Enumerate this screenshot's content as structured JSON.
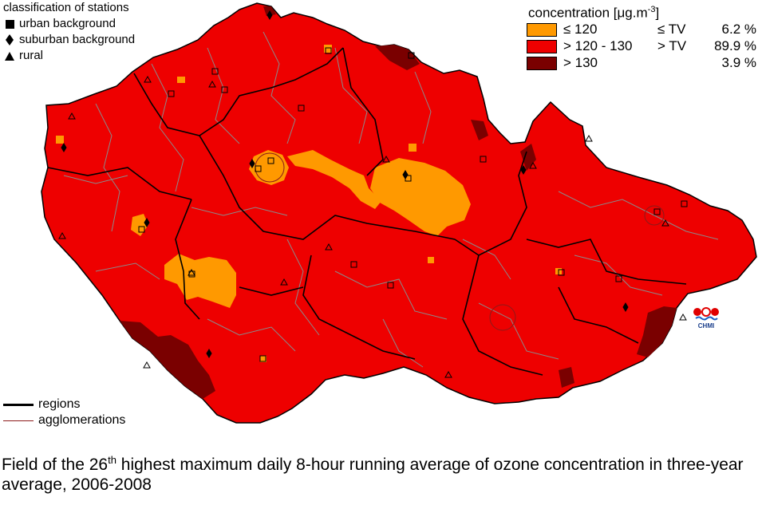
{
  "stations_legend": {
    "title": "classification of stations",
    "items": [
      {
        "symbol": "square",
        "label": "urban background"
      },
      {
        "symbol": "diamond",
        "label": "suburban background"
      },
      {
        "symbol": "triangle",
        "label": "rural"
      }
    ]
  },
  "concentration_legend": {
    "title": "concentration [μg.m",
    "unit_exponent": "-3",
    "title_suffix": "]",
    "items": [
      {
        "color": "#ff9900",
        "range": "≤ 120",
        "tv": "≤ TV",
        "percent": "6.2 %"
      },
      {
        "color": "#ee0000",
        "range": "> 120 - 130",
        "tv": "> TV",
        "percent": "89.9 %"
      },
      {
        "color": "#7a0000",
        "range": "> 130",
        "tv": "",
        "percent": "3.9 %"
      }
    ]
  },
  "line_legend": {
    "items": [
      {
        "style": "thick-black",
        "color": "#000000",
        "label": "regions"
      },
      {
        "style": "thin-darkred",
        "color": "#8b1a1a",
        "label": "agglomerations"
      }
    ]
  },
  "logo": {
    "text": "CHMI",
    "icon": "chmi-logo"
  },
  "caption": {
    "part1": "Field of the 26",
    "sup": "th",
    "part2": " highest maximum daily 8-hour running average of ozone concentration in three-year average, 2006-2008"
  },
  "colors": {
    "low": "#ff9900",
    "mid": "#ee0000",
    "high": "#7a0000",
    "district_border": "#8a8a8a",
    "region_border": "#000000"
  },
  "map_data": {
    "region": "Czech Republic",
    "stations_shown": true
  }
}
